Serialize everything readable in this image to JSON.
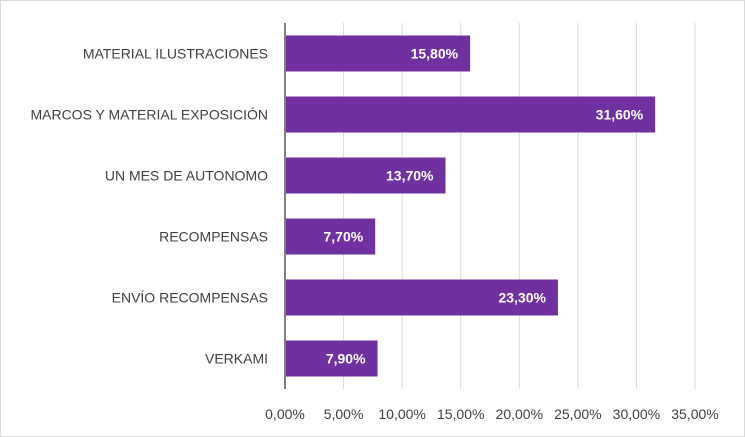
{
  "chart_data": {
    "type": "bar",
    "orientation": "horizontal",
    "categories": [
      "MATERIAL ILUSTRACIONES",
      "MARCOS Y MATERIAL EXPOSICIÓN",
      "UN MES DE AUTONOMO",
      "RECOMPENSAS",
      "ENVÍO RECOMPENSAS",
      "VERKAMI"
    ],
    "values": [
      15.8,
      31.6,
      13.7,
      7.7,
      23.3,
      7.9
    ],
    "data_labels": [
      "15,80%",
      "31,60%",
      "13,70%",
      "7,70%",
      "23,30%",
      "7,90%"
    ],
    "x_ticks": [
      0,
      5,
      10,
      15,
      20,
      25,
      30,
      35
    ],
    "x_tick_labels": [
      "0,00%",
      "5,00%",
      "10,00%",
      "15,00%",
      "20,00%",
      "25,00%",
      "30,00%",
      "35,00%"
    ],
    "xlim": [
      0,
      35
    ],
    "title": "",
    "xlabel": "",
    "ylabel": "",
    "grid": "vertical",
    "legend": "none",
    "bar_color": "#7030a0"
  }
}
